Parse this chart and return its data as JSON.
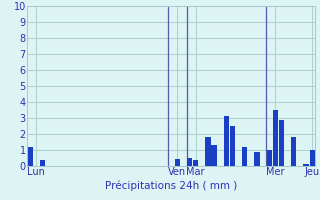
{
  "values": [
    1.2,
    0.0,
    0.4,
    0.0,
    0.0,
    0.0,
    0.0,
    0.0,
    0.0,
    0.0,
    0.0,
    0.0,
    0.0,
    0.0,
    0.0,
    0.0,
    0.0,
    0.0,
    0.0,
    0.0,
    0.0,
    0.0,
    0.0,
    0.0,
    0.45,
    0.0,
    0.5,
    0.4,
    0.0,
    1.8,
    1.3,
    0.0,
    3.1,
    2.5,
    0.0,
    1.2,
    0.0,
    0.9,
    0.0,
    1.0,
    3.5,
    2.9,
    0.0,
    1.8,
    0.0,
    0.15,
    1.0
  ],
  "day_labels": [
    "Lun",
    "Ven",
    "Mar",
    "Mer",
    "Jeu"
  ],
  "day_positions": [
    1,
    24,
    27,
    40,
    46
  ],
  "xlabel": "Précipitations 24h ( mm )",
  "ylim": [
    0,
    10
  ],
  "yticks": [
    0,
    1,
    2,
    3,
    4,
    5,
    6,
    7,
    8,
    9,
    10
  ],
  "bar_color": "#1a3fc4",
  "bg_color": "#ddf4f4",
  "grid_color": "#a8c8c8",
  "vline_color": "#5858a8",
  "vline_positions": [
    22.5,
    25.5,
    38.5
  ],
  "xlabel_color": "#3030b0",
  "tick_label_color": "#3030b0",
  "day_label_color": "#3030b0"
}
